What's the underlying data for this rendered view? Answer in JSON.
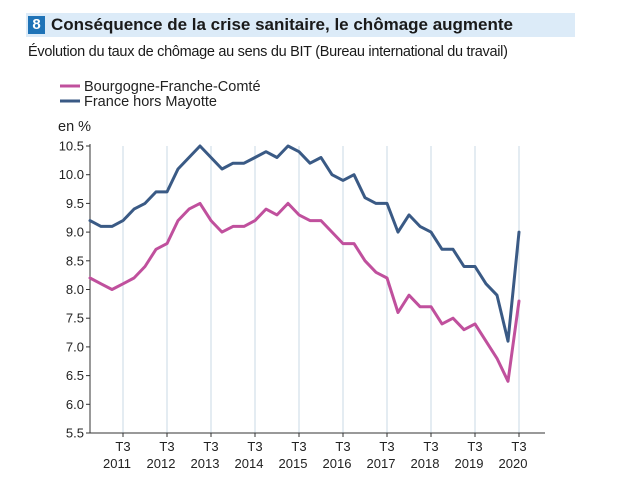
{
  "figure": {
    "number": "8",
    "title": "Conséquence de la crise sanitaire, le chômage augmente",
    "subtitle": "Évolution du taux de chômage au sens du BIT (Bureau international du travail)"
  },
  "chart_data": {
    "type": "line",
    "ylabel": "en %",
    "ylim": [
      5.5,
      10.5
    ],
    "yticks": [
      "10.5",
      "10.0",
      "9.5",
      "9.0",
      "8.5",
      "8.0",
      "7.5",
      "7.0",
      "6.5",
      "6.0",
      "5.5"
    ],
    "x_tick_labels": [
      {
        "top": "T3",
        "bottom": "2011",
        "index": 3
      },
      {
        "top": "T3",
        "bottom": "2012",
        "index": 7
      },
      {
        "top": "T3",
        "bottom": "2013",
        "index": 11
      },
      {
        "top": "T3",
        "bottom": "2014",
        "index": 15
      },
      {
        "top": "T3",
        "bottom": "2015",
        "index": 19
      },
      {
        "top": "T3",
        "bottom": "2016",
        "index": 23
      },
      {
        "top": "T3",
        "bottom": "2017",
        "index": 27
      },
      {
        "top": "T3",
        "bottom": "2018",
        "index": 31
      },
      {
        "top": "T3",
        "bottom": "2019",
        "index": 35
      },
      {
        "top": "T3",
        "bottom": "2020",
        "index": 39
      }
    ],
    "grid": "vertical",
    "legend_position": "top-left",
    "series": [
      {
        "name": "Bourgogne-Franche-Comté",
        "color": "#c0509d",
        "values": [
          8.2,
          8.1,
          8.0,
          8.1,
          8.2,
          8.4,
          8.7,
          8.8,
          9.2,
          9.4,
          9.5,
          9.2,
          9.0,
          9.1,
          9.1,
          9.2,
          9.4,
          9.3,
          9.5,
          9.3,
          9.2,
          9.2,
          9.0,
          8.8,
          8.8,
          8.5,
          8.3,
          8.2,
          7.6,
          7.9,
          7.7,
          7.7,
          7.4,
          7.5,
          7.3,
          7.4,
          7.1,
          6.8,
          6.4,
          7.8
        ]
      },
      {
        "name": "France hors Mayotte",
        "color": "#3a5a85",
        "values": [
          9.2,
          9.1,
          9.1,
          9.2,
          9.4,
          9.5,
          9.7,
          9.7,
          10.1,
          10.3,
          10.5,
          10.3,
          10.1,
          10.2,
          10.2,
          10.3,
          10.4,
          10.3,
          10.5,
          10.4,
          10.2,
          10.3,
          10.0,
          9.9,
          10.0,
          9.6,
          9.5,
          9.5,
          9.0,
          9.3,
          9.1,
          9.0,
          8.7,
          8.7,
          8.4,
          8.4,
          8.1,
          7.9,
          7.1,
          9.0
        ]
      }
    ]
  }
}
